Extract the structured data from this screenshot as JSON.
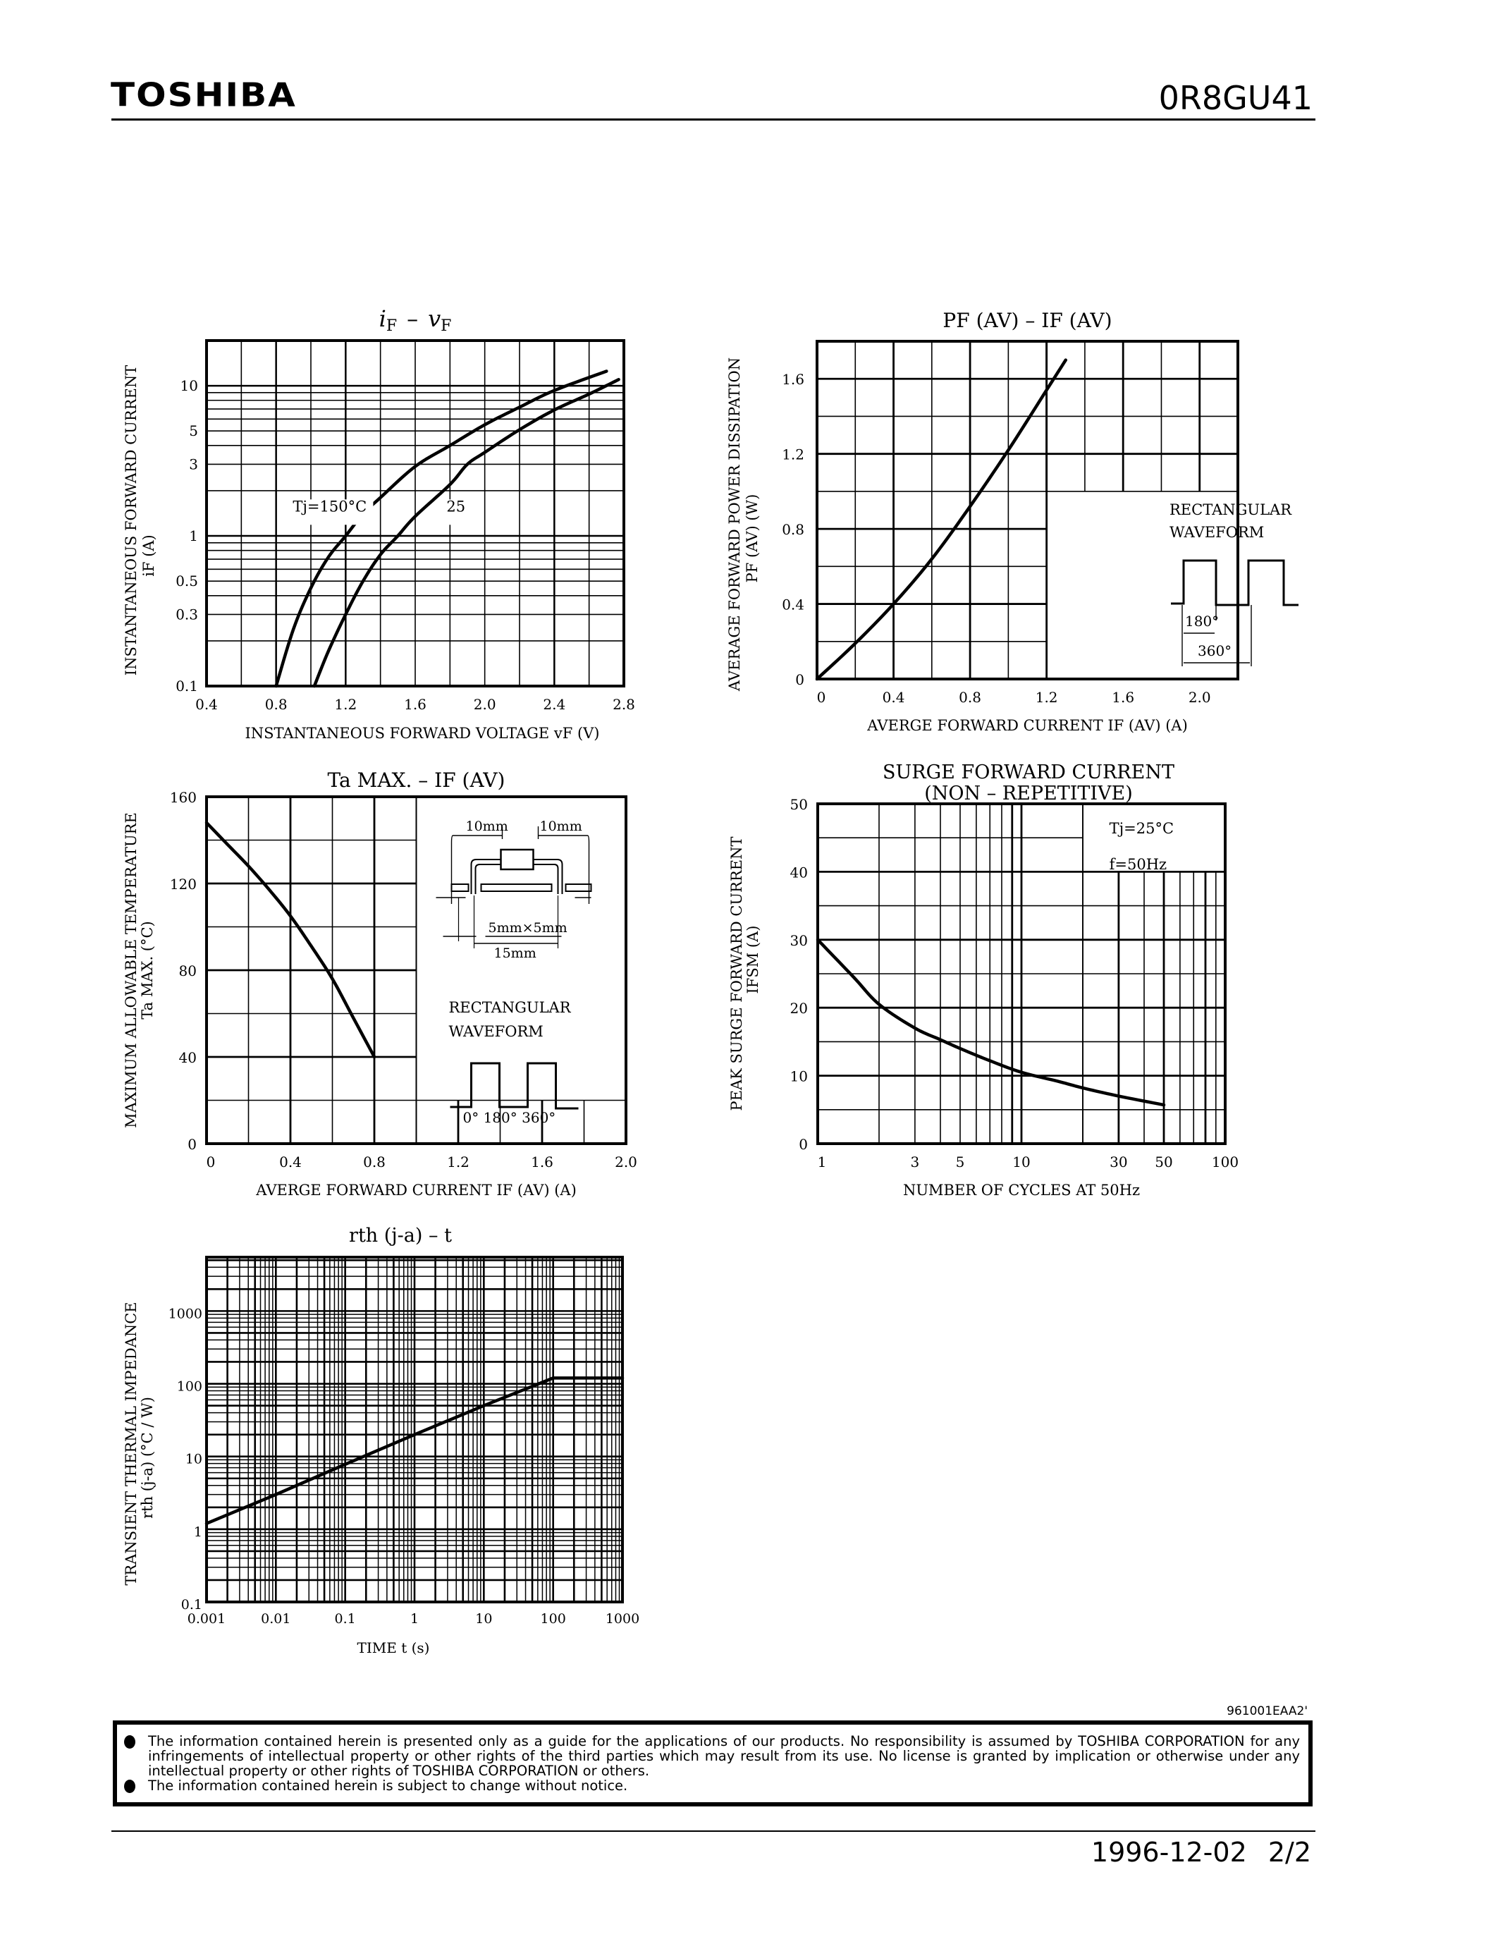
{
  "header": {
    "brand": "TOSHIBA",
    "part_number": "0R8GU41"
  },
  "footer": {
    "doc_id": "961001EAA2'",
    "notices": [
      "The information contained herein is presented only as a guide for the applications of our products. No responsibility is assumed by TOSHIBA CORPORATION for any infringements of intellectual property or other rights of the third parties which may result from its use. No license is granted by implication or otherwise under any intellectual property or other rights of TOSHIBA CORPORATION or others.",
      "The information contained herein is subject to change without notice."
    ],
    "date": "1996-12-02",
    "page": "2/2"
  },
  "chart_data": [
    {
      "id": "if_vf",
      "type": "line",
      "title": "iF – vF",
      "xlabel": "INSTANTANEOUS FORWARD VOLTAGE vF (V)",
      "ylabel": "INSTANTANEOUS FORWARD CURRENT iF (A)",
      "xscale": "linear",
      "yscale": "log",
      "xlim": [
        0.4,
        2.8
      ],
      "ylim": [
        0.1,
        20
      ],
      "xticks": [
        0.4,
        0.8,
        1.2,
        1.6,
        2.0,
        2.4,
        2.8
      ],
      "xtick_labels": [
        "0.4",
        "0.8",
        "1.2",
        "1.6",
        "2.0",
        "2.4",
        "2.8"
      ],
      "yticks": [
        0.1,
        0.3,
        0.5,
        1,
        3,
        5,
        10
      ],
      "ytick_labels": [
        "0.1",
        "0.3",
        "0.5",
        "1",
        "3",
        "5",
        "10"
      ],
      "grid": true,
      "series": [
        {
          "name": "Tj=150°C",
          "x": [
            0.8,
            0.9,
            1.0,
            1.1,
            1.2,
            1.3,
            1.4,
            1.6,
            1.8,
            2.0,
            2.2,
            2.4,
            2.7
          ],
          "y": [
            0.1,
            0.24,
            0.45,
            0.72,
            1.0,
            1.4,
            1.8,
            2.9,
            4.0,
            5.5,
            7.2,
            9.3,
            12.5
          ]
        },
        {
          "name": "25",
          "x": [
            1.02,
            1.1,
            1.2,
            1.3,
            1.4,
            1.5,
            1.6,
            1.8,
            1.9,
            2.0,
            2.2,
            2.4,
            2.6,
            2.77
          ],
          "y": [
            0.1,
            0.17,
            0.3,
            0.5,
            0.75,
            1.0,
            1.35,
            2.2,
            3.0,
            3.6,
            5.1,
            6.9,
            8.8,
            11.0
          ]
        }
      ],
      "annotations": [
        {
          "text": "Tj=150°C",
          "x": 1.0,
          "y": 1.5
        },
        {
          "text": "25",
          "x": 1.78,
          "y": 1.5
        }
      ]
    },
    {
      "id": "pf_if",
      "type": "line",
      "title": "PF(AV) – IF(AV)",
      "xlabel": "AVERGE FORWARD CURRENT IF(AV) (A)",
      "ylabel": "AVERAGE FORWARD POWER DISSIPATION PF(AV) (W)",
      "xscale": "linear",
      "yscale": "linear",
      "xlim": [
        0,
        2.2
      ],
      "ylim": [
        0,
        1.8
      ],
      "xticks": [
        0,
        0.4,
        0.8,
        1.2,
        1.6,
        2.0
      ],
      "xtick_labels": [
        "0",
        "0.4",
        "0.8",
        "1.2",
        "1.6",
        "2.0"
      ],
      "yticks": [
        0,
        0.4,
        0.8,
        1.2,
        1.6
      ],
      "ytick_labels": [
        "0",
        "0.4",
        "0.8",
        "1.2",
        "1.6"
      ],
      "grid": true,
      "series": [
        {
          "name": "Rectangular waveform",
          "x": [
            0,
            0.2,
            0.4,
            0.6,
            0.8,
            1.0,
            1.2,
            1.3
          ],
          "y": [
            0,
            0.19,
            0.4,
            0.64,
            0.92,
            1.22,
            1.54,
            1.7
          ]
        }
      ],
      "inset": {
        "label_line1": "RECTANGULAR",
        "label_line2": "WAVEFORM",
        "angle1": "180°",
        "angle2": "360°"
      }
    },
    {
      "id": "ta_if",
      "type": "line",
      "title": "Ta MAX. – IF(AV)",
      "xlabel": "AVERGE FORWARD CURRENT IF(AV) (A)",
      "ylabel": "MAXIMUM ALLOWABLE TEMPERATURE Ta MAX. (°C)",
      "xscale": "linear",
      "yscale": "linear",
      "xlim": [
        0,
        2.0
      ],
      "ylim": [
        0,
        160
      ],
      "xticks": [
        0,
        0.4,
        0.8,
        1.2,
        1.6,
        2.0
      ],
      "xtick_labels": [
        "0",
        "0.4",
        "0.8",
        "1.2",
        "1.6",
        "2.0"
      ],
      "yticks": [
        0,
        40,
        80,
        120,
        160
      ],
      "ytick_labels": [
        "0",
        "40",
        "80",
        "120",
        "160"
      ],
      "grid": true,
      "series": [
        {
          "name": "Ta MAX",
          "x": [
            0,
            0.1,
            0.2,
            0.3,
            0.4,
            0.5,
            0.6,
            0.7,
            0.8
          ],
          "y": [
            148,
            138,
            128,
            117,
            105,
            91,
            76,
            58,
            40
          ]
        }
      ],
      "inset": {
        "dim1": "10mm",
        "dim2": "10mm",
        "dim3": "5mm×5mm",
        "dim4": "15mm",
        "label_line1": "RECTANGULAR",
        "label_line2": "WAVEFORM",
        "angles": "0°  180°  360°"
      }
    },
    {
      "id": "ifsm_cycles",
      "type": "line",
      "title": "SURGE FORWARD CURRENT (NON – REPETITIVE)",
      "title_line1": "SURGE FORWARD CURRENT",
      "title_line2": "(NON – REPETITIVE)",
      "xlabel": "NUMBER OF CYCLES AT 50Hz",
      "ylabel": "PEAK SURGE FORWARD CURRENT IFSM (A)",
      "xscale": "log",
      "yscale": "linear",
      "xlim": [
        1,
        100
      ],
      "ylim": [
        0,
        50
      ],
      "xticks": [
        1,
        3,
        5,
        10,
        30,
        50,
        100
      ],
      "xtick_labels": [
        "1",
        "3",
        "5",
        "10",
        "30",
        "50",
        "100"
      ],
      "yticks": [
        0,
        10,
        20,
        30,
        40,
        50
      ],
      "ytick_labels": [
        "0",
        "10",
        "20",
        "30",
        "40",
        "50"
      ],
      "grid": true,
      "series": [
        {
          "name": "Tj=25°C f=50Hz",
          "x": [
            1,
            1.5,
            2,
            3,
            4,
            5,
            7,
            10,
            15,
            20,
            30,
            50
          ],
          "y": [
            30,
            24.5,
            20.5,
            17,
            15.3,
            14,
            12.2,
            10.5,
            9.2,
            8.2,
            7.0,
            5.7
          ]
        }
      ],
      "annotations": [
        {
          "text": "Tj=25°C"
        },
        {
          "text": "f=50Hz"
        }
      ]
    },
    {
      "id": "rth_t",
      "type": "line",
      "title": "rth(j-a) – t",
      "xlabel": "TIME t (s)",
      "ylabel": "TRANSIENT THERMAL IMPEDANCE rth(j-a) (°C/W)",
      "xscale": "log",
      "yscale": "log",
      "xlim": [
        0.001,
        1000
      ],
      "ylim": [
        0.1,
        5500
      ],
      "xticks": [
        0.001,
        0.01,
        0.1,
        1,
        10,
        100,
        1000
      ],
      "xtick_labels": [
        "0.001",
        "0.01",
        "0.1",
        "1",
        "10",
        "100",
        "1000"
      ],
      "yticks": [
        0.1,
        1,
        10,
        100,
        1000
      ],
      "ytick_labels": [
        "0.1",
        "1",
        "10",
        "100",
        "1000"
      ],
      "grid": true,
      "series": [
        {
          "name": "rth(j-a)",
          "x": [
            0.001,
            0.01,
            0.1,
            1,
            10,
            100,
            1000
          ],
          "y": [
            1.2,
            3.0,
            7.8,
            20,
            50,
            120,
            120
          ]
        }
      ]
    }
  ],
  "charts_layout_text": {
    "if_vf": {
      "title_main": "i",
      "title_sub1": "F",
      "title_dash": "–",
      "title_v": "v",
      "title_sub2": "F",
      "ylabel1": "INSTANTANEOUS FORWARD CURRENT",
      "ylabel2": "iF  (A)",
      "xlabel": "INSTANTANEOUS FORWARD VOLTAGE   vF   (V)"
    },
    "pf_if": {
      "title": "PF (AV)  –  IF (AV)",
      "ylabel1": "AVERAGE FORWARD POWER DISSIPATION",
      "ylabel2": "PF (AV)   (W)",
      "xlabel": "AVERGE FORWARD CURRENT   IF (AV)   (A)"
    },
    "ta_if": {
      "title": "Ta MAX.  –  IF (AV)",
      "ylabel1": "MAXIMUM ALLOWABLE TEMPERATURE",
      "ylabel2": "Ta MAX.   (°C)",
      "xlabel": "AVERGE FORWARD CURRENT   IF (AV)   (A)"
    },
    "ifsm_cycles": {
      "title1": "SURGE FORWARD CURRENT",
      "title2": "(NON  –  REPETITIVE)",
      "ylabel1": "PEAK SURGE FORWARD CURRENT",
      "ylabel2": "IFSM   (A)",
      "xlabel": "NUMBER OF CYCLES AT 50Hz"
    },
    "rth_t": {
      "title": "rth (j-a)  –  t",
      "ylabel1": "TRANSIENT THERMAL IMPEDANCE",
      "ylabel2": "rth (j-a)   (°C / W)",
      "xlabel": "TIME    t    (s)"
    }
  }
}
